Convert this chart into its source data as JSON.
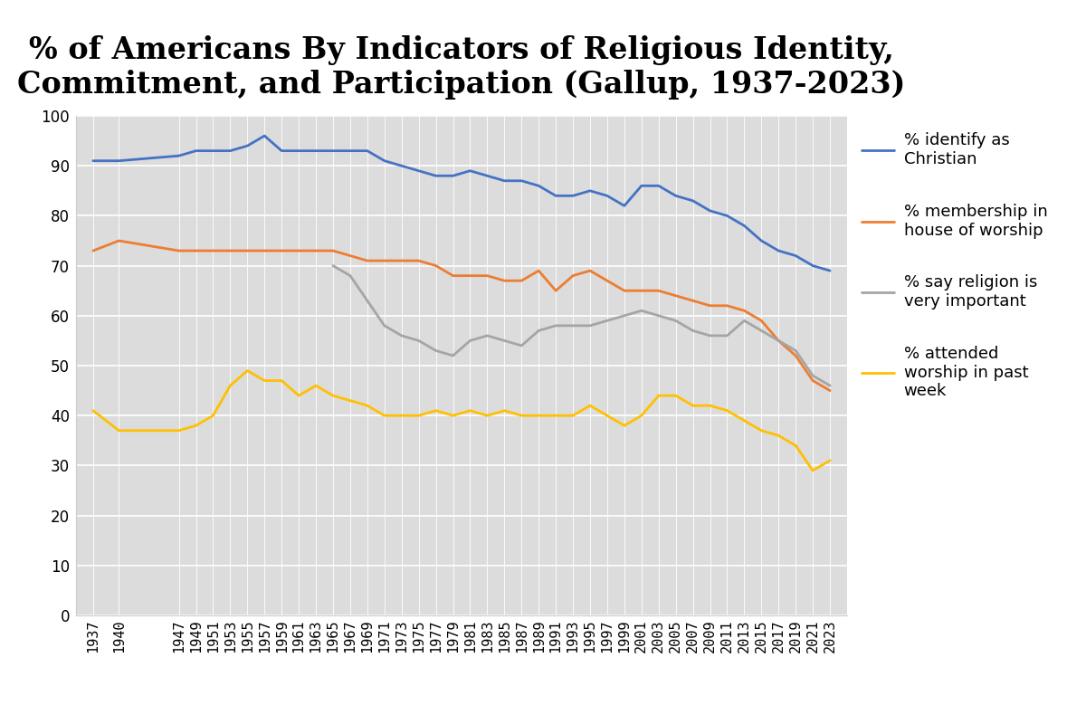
{
  "title": "% of Americans By Indicators of Religious Identity,\nCommitment, and Participation (Gallup, 1937-2023)",
  "plot_bg_color": "#dcdcdc",
  "fig_bg_color": "#ffffff",
  "series": {
    "christian": {
      "label": "% identify as\nChristian",
      "color": "#4472C4",
      "data": {
        "1937": 91,
        "1940": 91,
        "1947": 92,
        "1949": 93,
        "1951": 93,
        "1953": 93,
        "1955": 94,
        "1957": 96,
        "1959": 93,
        "1961": 93,
        "1963": 93,
        "1965": 93,
        "1967": 93,
        "1969": 93,
        "1971": 91,
        "1973": 90,
        "1975": 89,
        "1977": 88,
        "1979": 88,
        "1981": 89,
        "1983": 88,
        "1985": 87,
        "1987": 87,
        "1989": 86,
        "1991": 84,
        "1993": 84,
        "1995": 85,
        "1997": 84,
        "1999": 82,
        "2001": 86,
        "2003": 86,
        "2005": 84,
        "2007": 83,
        "2009": 81,
        "2011": 80,
        "2013": 78,
        "2015": 75,
        "2017": 73,
        "2019": 72,
        "2021": 70,
        "2023": 69
      }
    },
    "membership": {
      "label": "% membership in\nhouse of worship",
      "color": "#ED7D31",
      "data": {
        "1937": 73,
        "1940": 75,
        "1947": 73,
        "1949": 73,
        "1951": 73,
        "1953": 73,
        "1955": 73,
        "1957": 73,
        "1959": 73,
        "1961": 73,
        "1963": 73,
        "1965": 73,
        "1967": 72,
        "1969": 71,
        "1971": 71,
        "1973": 71,
        "1975": 71,
        "1977": 70,
        "1979": 68,
        "1981": 68,
        "1983": 68,
        "1985": 67,
        "1987": 67,
        "1989": 69,
        "1991": 65,
        "1993": 68,
        "1995": 69,
        "1997": 67,
        "1999": 65,
        "2001": 65,
        "2003": 65,
        "2005": 64,
        "2007": 63,
        "2009": 62,
        "2011": 62,
        "2013": 61,
        "2015": 59,
        "2017": 55,
        "2019": 52,
        "2021": 47,
        "2023": 45
      }
    },
    "important": {
      "label": "% say religion is\nvery important",
      "color": "#A5A5A5",
      "data": {
        "1965": 70,
        "1967": 68,
        "1969": 63,
        "1971": 58,
        "1973": 56,
        "1975": 55,
        "1977": 53,
        "1979": 52,
        "1981": 55,
        "1983": 56,
        "1985": 55,
        "1987": 54,
        "1989": 57,
        "1991": 58,
        "1993": 58,
        "1995": 58,
        "1997": 59,
        "1999": 60,
        "2001": 61,
        "2003": 60,
        "2005": 59,
        "2007": 57,
        "2009": 56,
        "2011": 56,
        "2013": 59,
        "2015": 57,
        "2017": 55,
        "2019": 53,
        "2021": 48,
        "2023": 46
      }
    },
    "attended": {
      "label": "% attended\nworship in past\nweek",
      "color": "#FFC000",
      "data": {
        "1937": 41,
        "1940": 37,
        "1947": 37,
        "1949": 38,
        "1951": 40,
        "1953": 46,
        "1955": 49,
        "1957": 47,
        "1959": 47,
        "1961": 44,
        "1963": 46,
        "1965": 44,
        "1967": 43,
        "1969": 42,
        "1971": 40,
        "1973": 40,
        "1975": 40,
        "1977": 41,
        "1979": 40,
        "1981": 41,
        "1983": 40,
        "1985": 41,
        "1987": 40,
        "1989": 40,
        "1991": 40,
        "1993": 40,
        "1995": 42,
        "1997": 40,
        "1999": 38,
        "2001": 40,
        "2003": 44,
        "2005": 44,
        "2007": 42,
        "2009": 42,
        "2011": 41,
        "2013": 39,
        "2015": 37,
        "2017": 36,
        "2019": 34,
        "2021": 29,
        "2023": 31
      }
    }
  },
  "ylim": [
    0,
    100
  ],
  "yticks": [
    0,
    10,
    20,
    30,
    40,
    50,
    60,
    70,
    80,
    90,
    100
  ],
  "xtick_years": [
    1937,
    1940,
    1947,
    1949,
    1951,
    1953,
    1955,
    1957,
    1959,
    1961,
    1963,
    1965,
    1967,
    1969,
    1971,
    1973,
    1975,
    1977,
    1979,
    1981,
    1983,
    1985,
    1987,
    1989,
    1991,
    1993,
    1995,
    1997,
    1999,
    2001,
    2003,
    2005,
    2007,
    2009,
    2011,
    2013,
    2015,
    2017,
    2019,
    2021,
    2023
  ],
  "title_fontsize": 24,
  "tick_fontsize": 11,
  "legend_fontsize": 13,
  "line_width": 2.0
}
